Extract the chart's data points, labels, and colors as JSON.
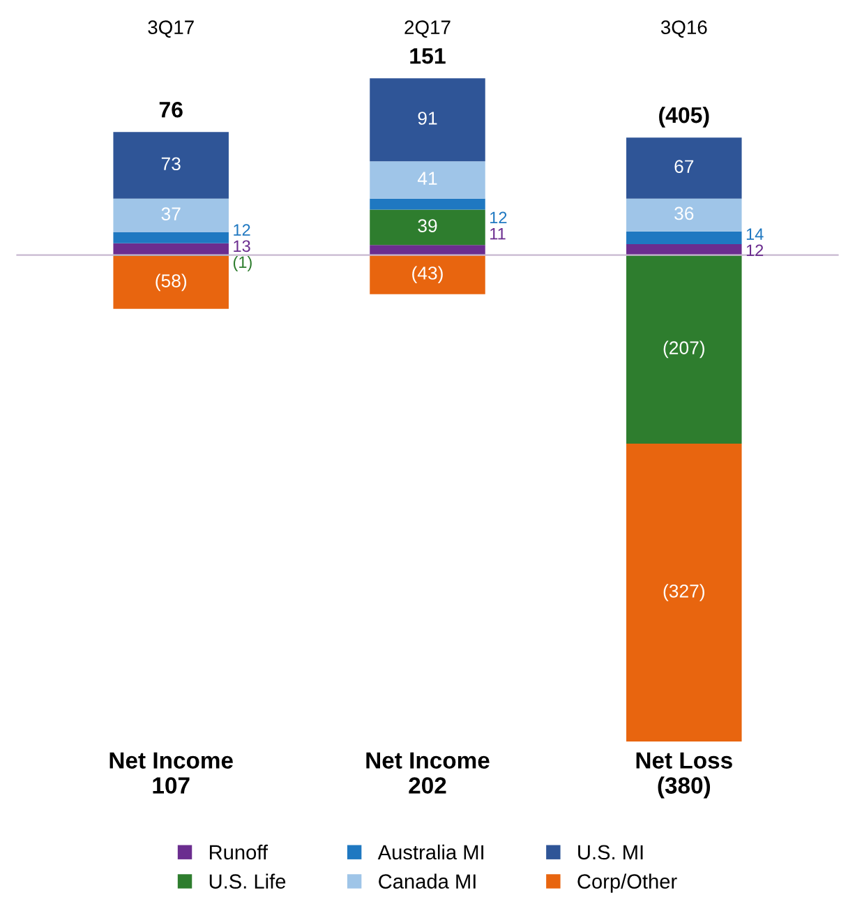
{
  "chart_data": {
    "type": "bar",
    "stacked": true,
    "categories": [
      "3Q17",
      "2Q17",
      "3Q16"
    ],
    "series": [
      {
        "name": "Runoff",
        "color": "#6b2d8f",
        "values": [
          13,
          11,
          12
        ],
        "value_labels": [
          "13",
          "11",
          "12"
        ]
      },
      {
        "name": "U.S. Life",
        "color": "#2e7d2e",
        "values": [
          -1,
          39,
          -207
        ],
        "value_labels": [
          "(1)",
          "39",
          "(207)"
        ]
      },
      {
        "name": "Australia MI",
        "color": "#1f78c1",
        "values": [
          12,
          12,
          14
        ],
        "value_labels": [
          "12",
          "12",
          "14"
        ]
      },
      {
        "name": "Canada MI",
        "color": "#9fc5e8",
        "values": [
          37,
          41,
          36
        ],
        "value_labels": [
          "37",
          "41",
          "36"
        ]
      },
      {
        "name": "U.S. MI",
        "color": "#2f5597",
        "values": [
          73,
          91,
          67
        ],
        "value_labels": [
          "73",
          "91",
          "67"
        ]
      },
      {
        "name": "Corp/Other",
        "color": "#e8650f",
        "values": [
          -58,
          -43,
          -327
        ],
        "value_labels": [
          "(58)",
          "(43)",
          "(327)"
        ]
      }
    ],
    "totals": [
      "76",
      "151",
      "(405)"
    ],
    "annotations": [
      "Net Income\n107",
      "Net Income\n202",
      "Net Loss\n(380)"
    ],
    "ylim": [
      -540,
      200
    ],
    "legend": "bottom"
  }
}
